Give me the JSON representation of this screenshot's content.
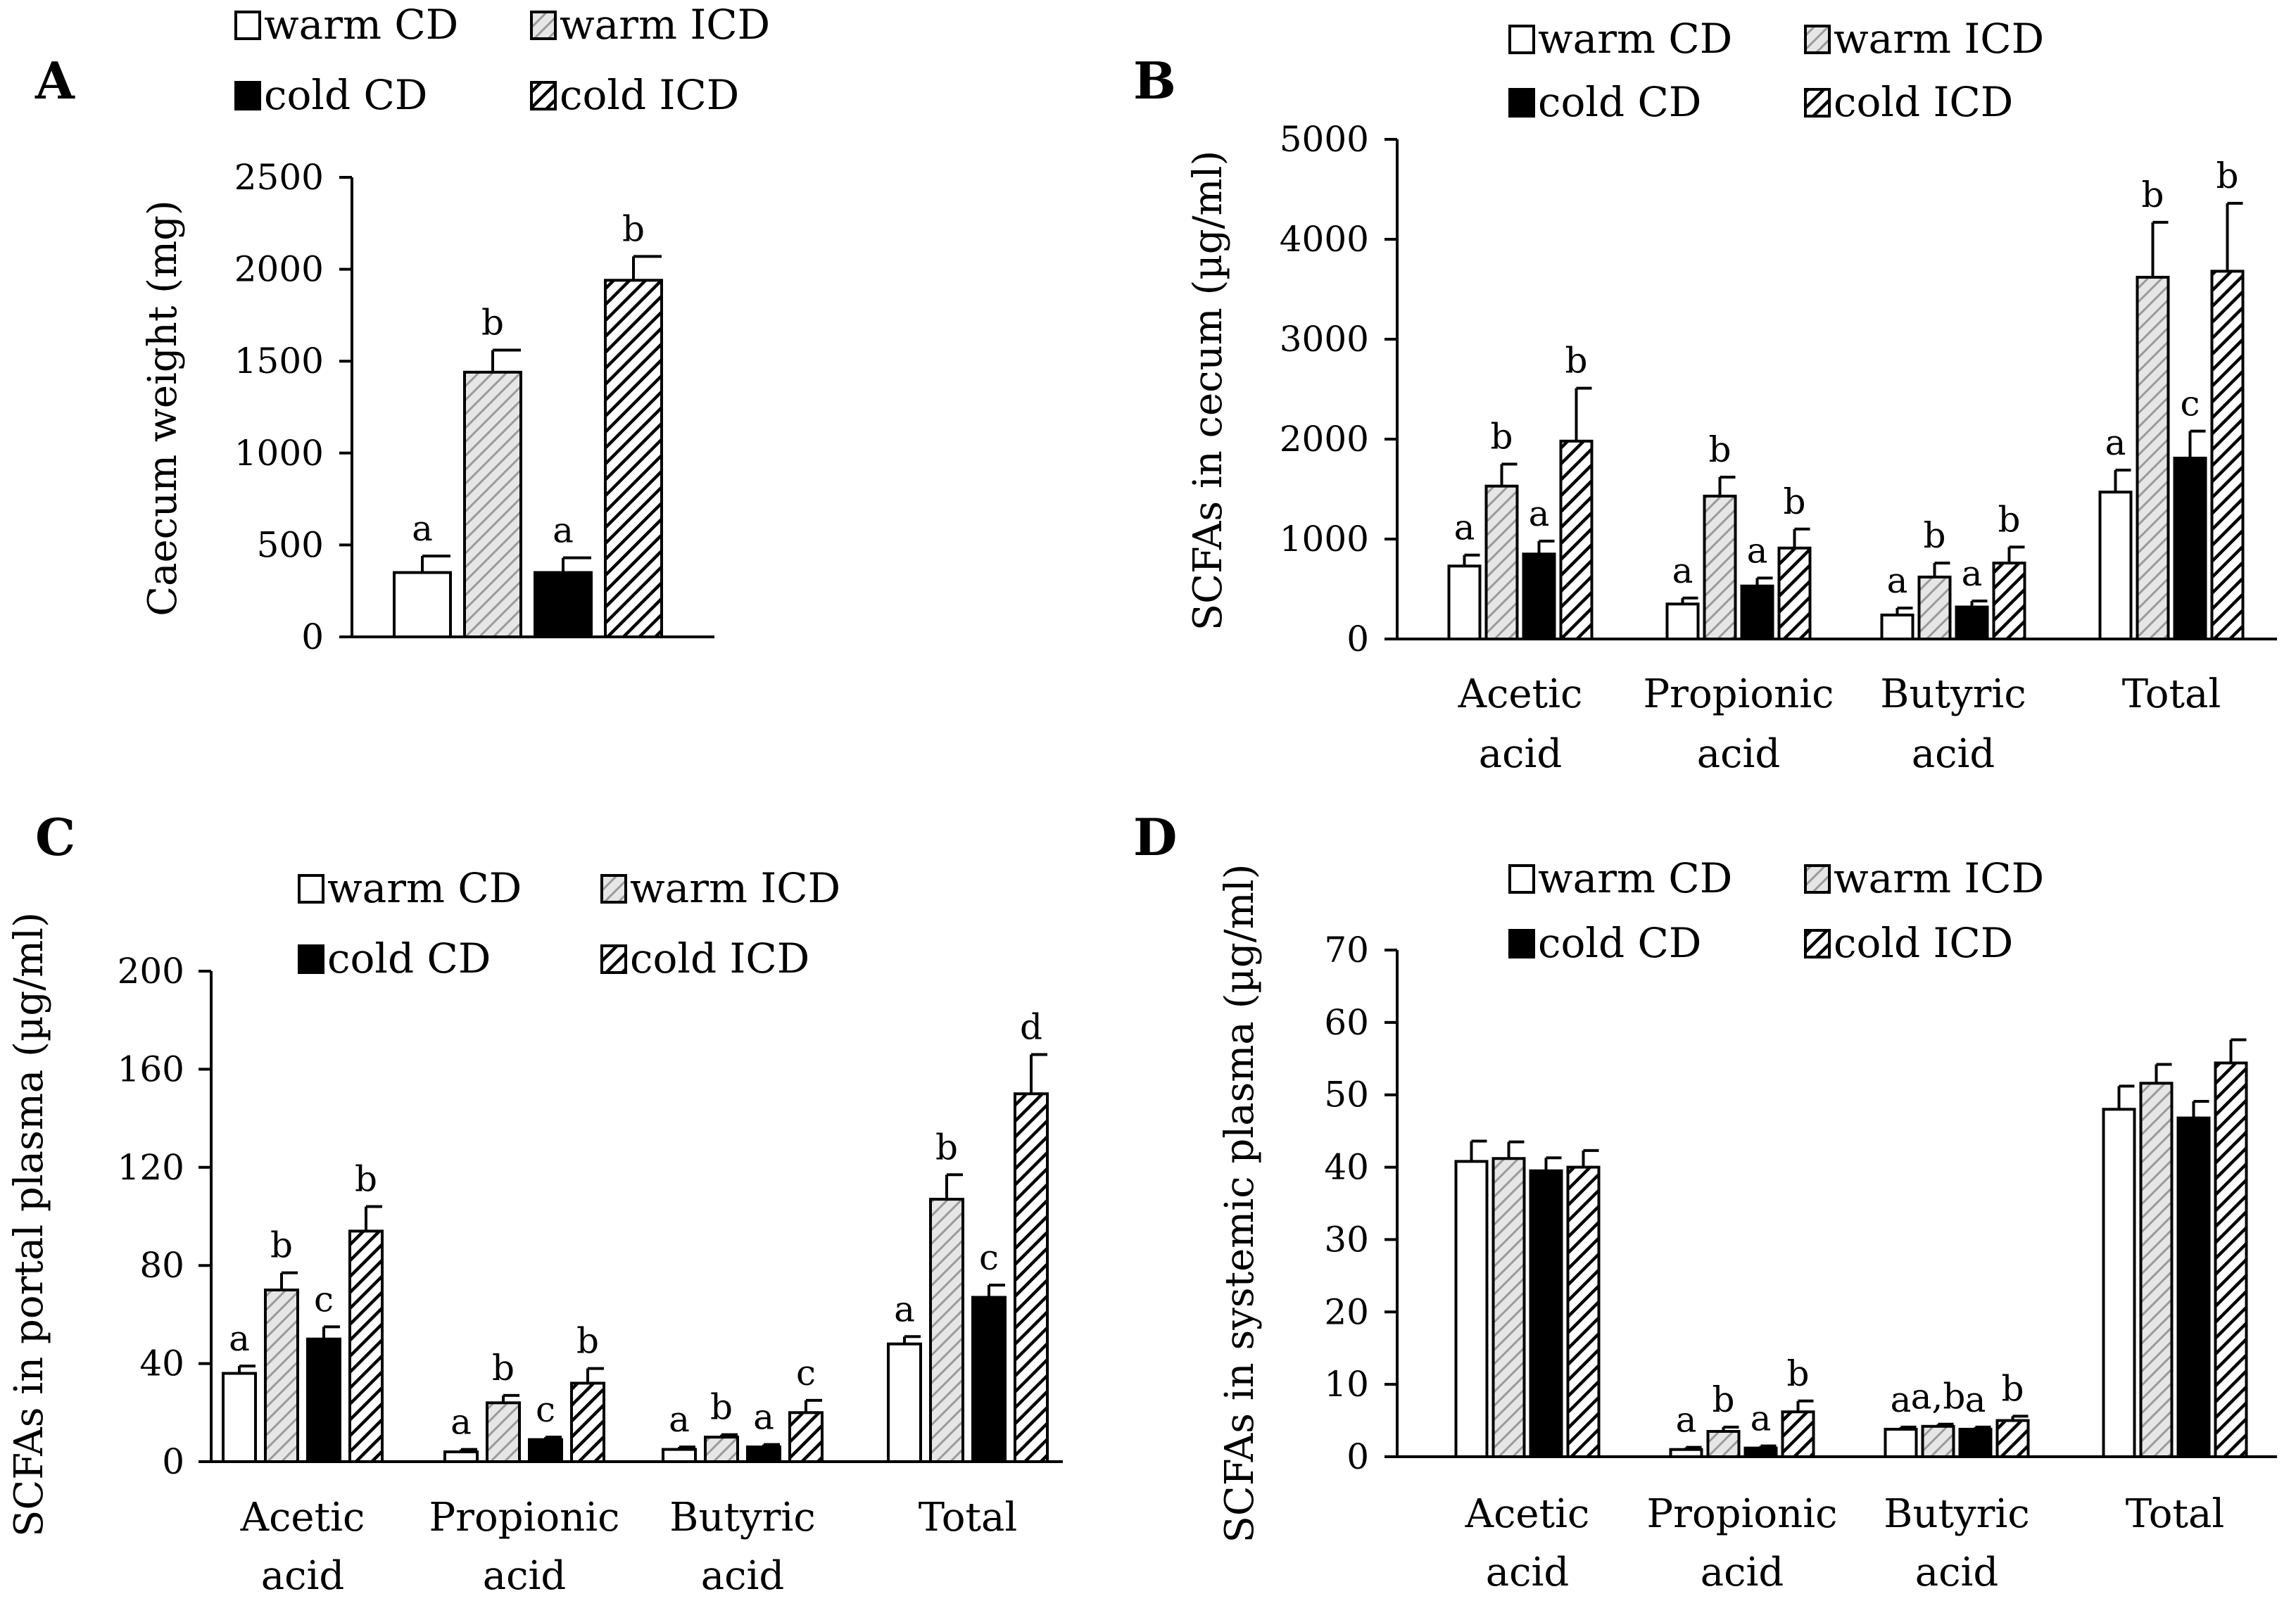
{
  "groups": [
    {
      "key": "warm_cd",
      "label": "warm CD",
      "fill": "#ffffff",
      "pattern": "none"
    },
    {
      "key": "warm_icd",
      "label": "warm ICD",
      "fill": "#d9d9d9",
      "pattern": "light-diagonal"
    },
    {
      "key": "cold_cd",
      "label": "cold CD",
      "fill": "#000000",
      "pattern": "none"
    },
    {
      "key": "cold_icd",
      "label": "cold ICD",
      "fill": "#ffffff",
      "pattern": "dark-diagonal"
    }
  ],
  "colors": {
    "stroke": "#000000",
    "light_hatch_bg": "#e6e6e6",
    "light_hatch_line": "#9a9a9a"
  },
  "chart_data": [
    {
      "panel": "A",
      "type": "bar",
      "ylabel": "Caecum weight (mg)",
      "ylim": [
        0,
        2500
      ],
      "yticks": [
        0,
        500,
        1000,
        1500,
        2000,
        2500
      ],
      "legend": "top",
      "categories": [
        ""
      ],
      "series": [
        {
          "name": "warm CD",
          "values": [
            350
          ],
          "errors": [
            90
          ],
          "letters": [
            "a"
          ]
        },
        {
          "name": "warm ICD",
          "values": [
            1440
          ],
          "errors": [
            120
          ],
          "letters": [
            "b"
          ]
        },
        {
          "name": "cold CD",
          "values": [
            350
          ],
          "errors": [
            80
          ],
          "letters": [
            "a"
          ]
        },
        {
          "name": "cold ICD",
          "values": [
            1940
          ],
          "errors": [
            130
          ],
          "letters": [
            "b"
          ]
        }
      ]
    },
    {
      "panel": "B",
      "type": "bar",
      "ylabel": "SCFAs in cecum (µg/ml)",
      "ylim": [
        0,
        5000
      ],
      "yticks": [
        0,
        1000,
        2000,
        3000,
        4000,
        5000
      ],
      "legend": "top",
      "categories": [
        [
          "Acetic",
          "acid"
        ],
        [
          "Propionic",
          "acid"
        ],
        [
          "Butyric",
          "acid"
        ],
        [
          "Total"
        ]
      ],
      "series": [
        {
          "name": "warm CD",
          "values": [
            730,
            350,
            240,
            1470
          ],
          "errors": [
            110,
            60,
            70,
            220
          ],
          "letters": [
            "a",
            "a",
            "a",
            "a"
          ]
        },
        {
          "name": "warm ICD",
          "values": [
            1530,
            1430,
            620,
            3620
          ],
          "errors": [
            220,
            190,
            140,
            550
          ],
          "letters": [
            "b",
            "b",
            "b",
            "b"
          ]
        },
        {
          "name": "cold CD",
          "values": [
            850,
            530,
            320,
            1810
          ],
          "errors": [
            130,
            80,
            60,
            270
          ],
          "letters": [
            "a",
            "a",
            "a",
            "c"
          ]
        },
        {
          "name": "cold ICD",
          "values": [
            1980,
            910,
            760,
            3680
          ],
          "errors": [
            530,
            190,
            160,
            680
          ],
          "letters": [
            "b",
            "b",
            "b",
            "b"
          ]
        }
      ]
    },
    {
      "panel": "C",
      "type": "bar",
      "ylabel": "SCFAs in portal plasma (µg/ml)",
      "ylim": [
        0,
        200
      ],
      "yticks": [
        0,
        40,
        80,
        120,
        160,
        200
      ],
      "legend": "top",
      "categories": [
        [
          "Acetic",
          "acid"
        ],
        [
          "Propionic",
          "acid"
        ],
        [
          "Butyric",
          "acid"
        ],
        [
          "Total"
        ]
      ],
      "series": [
        {
          "name": "warm CD",
          "values": [
            36,
            4,
            5,
            48
          ],
          "errors": [
            3,
            1,
            1,
            3
          ],
          "letters": [
            "a",
            "a",
            "a",
            "a"
          ]
        },
        {
          "name": "warm ICD",
          "values": [
            70,
            24,
            10,
            107
          ],
          "errors": [
            7,
            3,
            1,
            10
          ],
          "letters": [
            "b",
            "b",
            "b",
            "b"
          ]
        },
        {
          "name": "cold CD",
          "values": [
            50,
            9,
            6,
            67
          ],
          "errors": [
            5,
            1,
            1,
            5
          ],
          "letters": [
            "c",
            "c",
            "a",
            "c"
          ]
        },
        {
          "name": "cold ICD",
          "values": [
            94,
            32,
            20,
            150
          ],
          "errors": [
            10,
            6,
            5,
            16
          ],
          "letters": [
            "b",
            "b",
            "c",
            "d"
          ]
        }
      ]
    },
    {
      "panel": "D",
      "type": "bar",
      "ylabel": "SCFAs in systemic plasma (µg/ml)",
      "ylim": [
        0,
        70
      ],
      "yticks": [
        0,
        10,
        20,
        30,
        40,
        50,
        60,
        70
      ],
      "legend": "top",
      "categories": [
        [
          "Acetic",
          "acid"
        ],
        [
          "Propionic",
          "acid"
        ],
        [
          "Butyric",
          "acid"
        ],
        [
          "Total"
        ]
      ],
      "series": [
        {
          "name": "warm CD",
          "values": [
            40.8,
            1.0,
            3.8,
            48.0
          ],
          "errors": [
            2.8,
            0.3,
            0.3,
            3.2
          ],
          "letters": [
            "",
            "a",
            "a",
            ""
          ]
        },
        {
          "name": "warm ICD",
          "values": [
            41.2,
            3.5,
            4.2,
            51.6
          ],
          "errors": [
            2.3,
            0.6,
            0.3,
            2.6
          ],
          "letters": [
            "",
            "b",
            "a,b",
            ""
          ]
        },
        {
          "name": "cold CD",
          "values": [
            39.5,
            1.2,
            3.8,
            46.8
          ],
          "errors": [
            1.8,
            0.3,
            0.3,
            2.3
          ],
          "letters": [
            "",
            "a",
            "a",
            ""
          ]
        },
        {
          "name": "cold ICD",
          "values": [
            40.0,
            6.2,
            5.0,
            54.4
          ],
          "errors": [
            2.3,
            1.5,
            0.6,
            3.2
          ],
          "letters": [
            "",
            "b",
            "b",
            ""
          ]
        }
      ]
    }
  ]
}
